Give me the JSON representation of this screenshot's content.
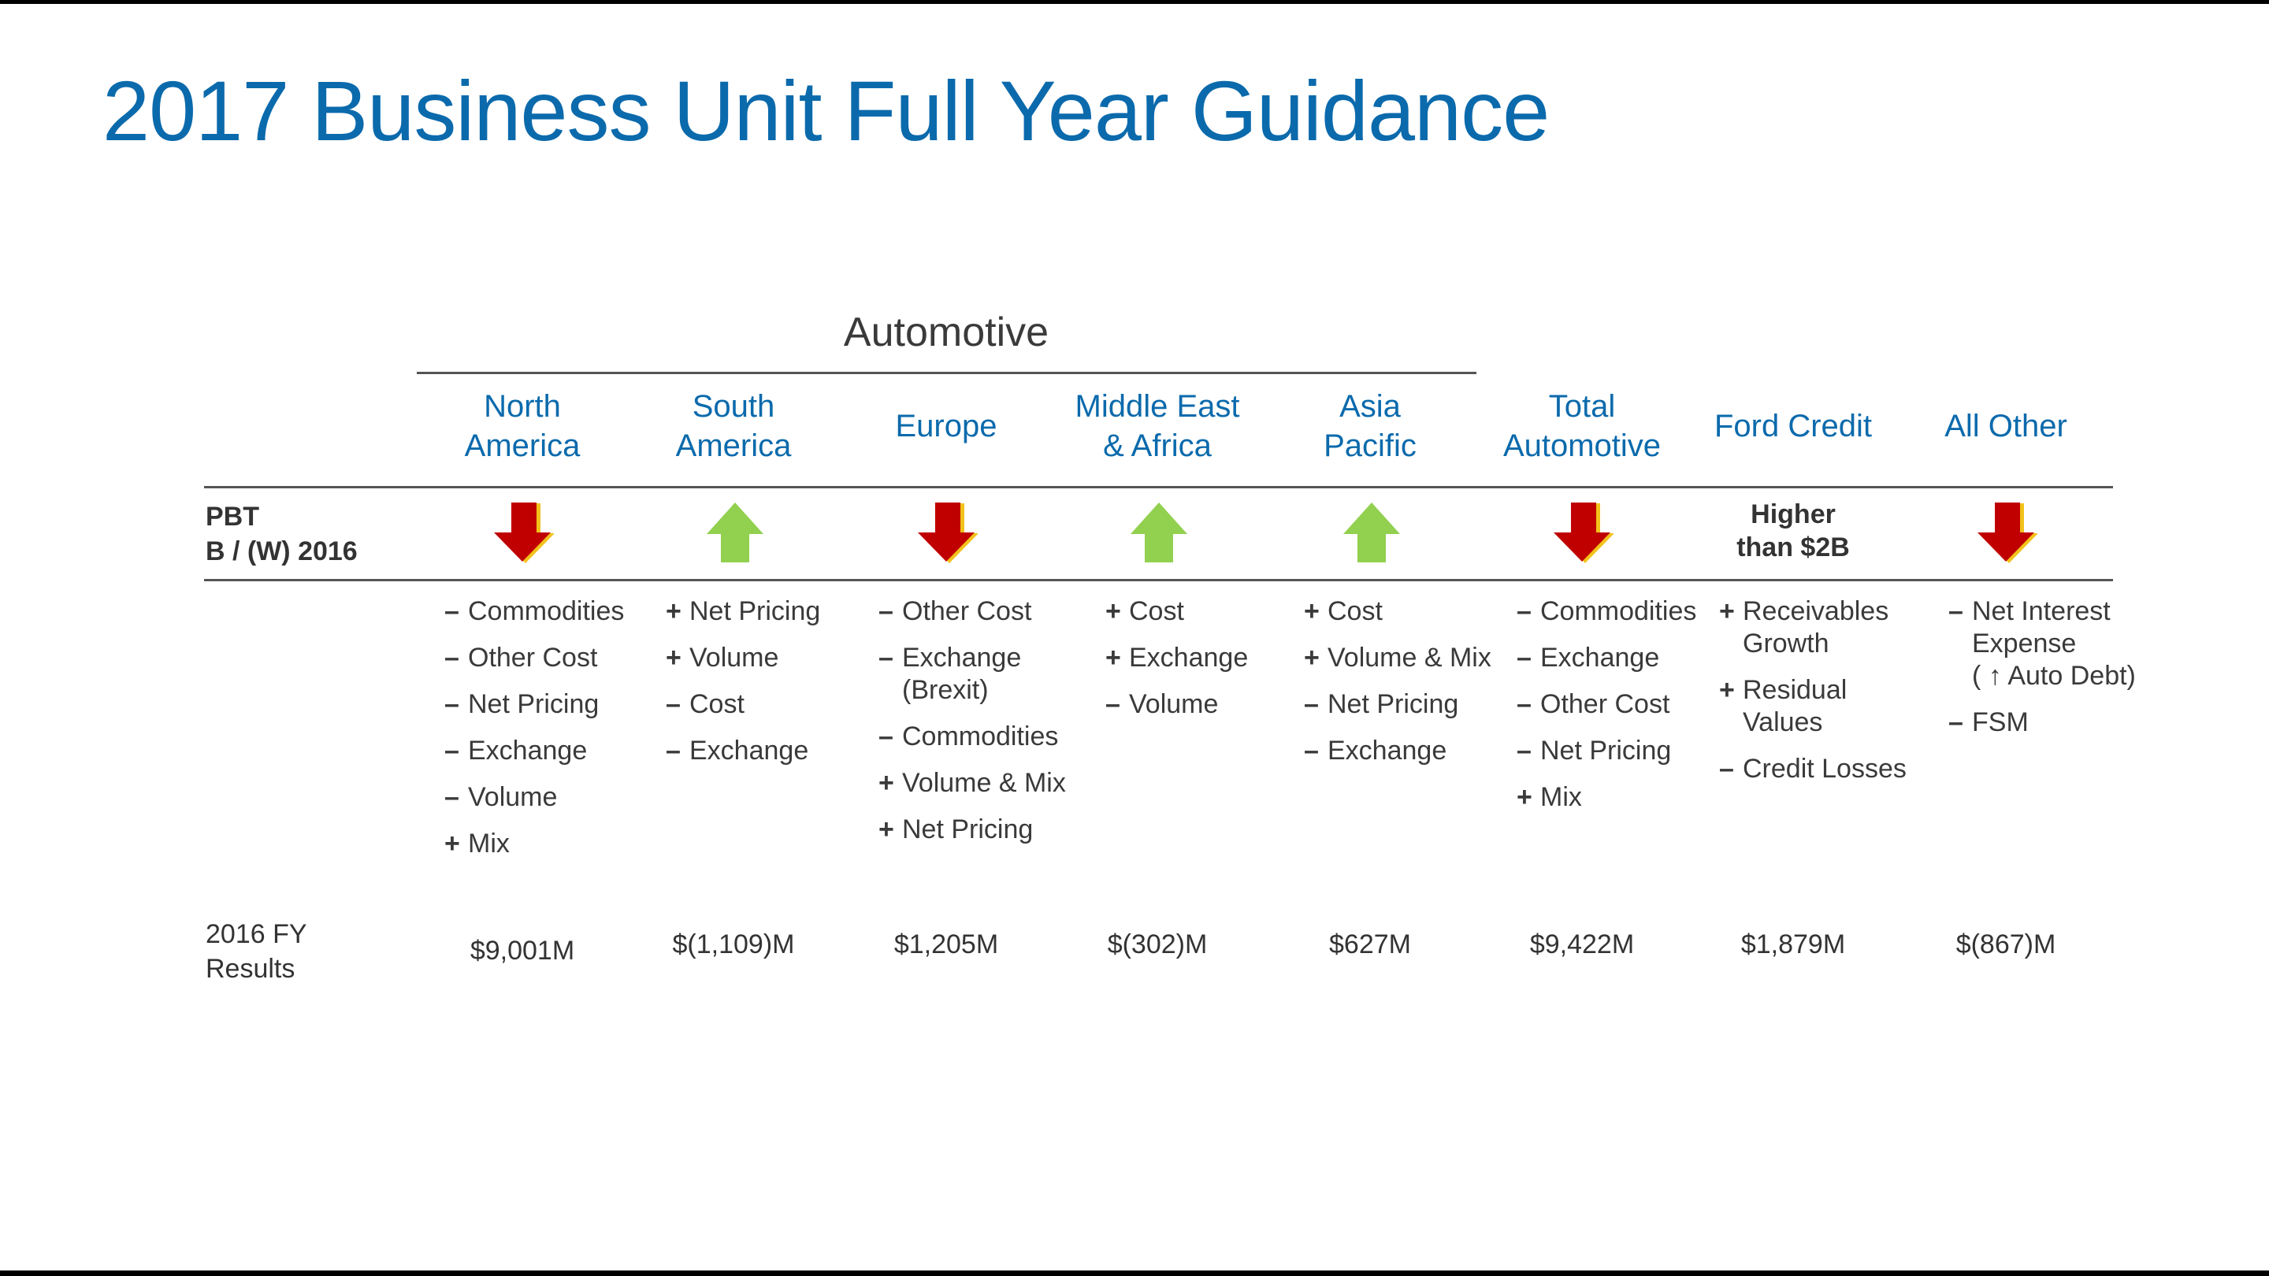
{
  "title": "2017 Business Unit Full Year Guidance",
  "group_label": "Automotive",
  "row_labels": {
    "pbt": [
      "PBT",
      "B / (W) 2016"
    ],
    "results": [
      "2016 FY",
      "Results"
    ]
  },
  "colors": {
    "title": "#0b6aac",
    "down": "#c00000",
    "up": "#92d050"
  },
  "columns": [
    {
      "header": [
        "North",
        "America"
      ],
      "pbt": "down",
      "value": "$9,001M",
      "bullets": [
        {
          "sign": "–",
          "lines": [
            "Commodities"
          ]
        },
        {
          "sign": "–",
          "lines": [
            "Other Cost"
          ]
        },
        {
          "sign": "–",
          "lines": [
            "Net Pricing"
          ]
        },
        {
          "sign": "–",
          "lines": [
            "Exchange"
          ]
        },
        {
          "sign": "–",
          "lines": [
            "Volume"
          ]
        },
        {
          "sign": "+",
          "lines": [
            "Mix"
          ]
        }
      ]
    },
    {
      "header": [
        "South",
        "America"
      ],
      "pbt": "up",
      "value": "$(1,109)M",
      "bullets": [
        {
          "sign": "+",
          "lines": [
            "Net Pricing"
          ]
        },
        {
          "sign": "+",
          "lines": [
            "Volume"
          ]
        },
        {
          "sign": "–",
          "lines": [
            "Cost"
          ]
        },
        {
          "sign": "–",
          "lines": [
            "Exchange"
          ]
        }
      ]
    },
    {
      "header": [
        "Europe"
      ],
      "pbt": "down",
      "value": "$1,205M",
      "bullets": [
        {
          "sign": "–",
          "lines": [
            "Other Cost"
          ]
        },
        {
          "sign": "–",
          "lines": [
            "Exchange",
            "(Brexit)"
          ]
        },
        {
          "sign": "–",
          "lines": [
            "Commodities"
          ]
        },
        {
          "sign": "+",
          "lines": [
            "Volume & Mix"
          ]
        },
        {
          "sign": "+",
          "lines": [
            "Net Pricing"
          ]
        }
      ]
    },
    {
      "header": [
        "Middle East",
        "& Africa"
      ],
      "pbt": "up",
      "value": "$(302)M",
      "bullets": [
        {
          "sign": "+",
          "lines": [
            "Cost"
          ]
        },
        {
          "sign": "+",
          "lines": [
            "Exchange"
          ]
        },
        {
          "sign": "–",
          "lines": [
            "Volume"
          ]
        }
      ]
    },
    {
      "header": [
        "Asia",
        "Pacific"
      ],
      "pbt": "up",
      "value": "$627M",
      "bullets": [
        {
          "sign": "+",
          "lines": [
            "Cost"
          ]
        },
        {
          "sign": "+",
          "lines": [
            "Volume & Mix"
          ]
        },
        {
          "sign": "–",
          "lines": [
            "Net Pricing"
          ]
        },
        {
          "sign": "–",
          "lines": [
            "Exchange"
          ]
        }
      ]
    },
    {
      "header": [
        "Total",
        "Automotive"
      ],
      "pbt": "down",
      "value": "$9,422M",
      "bullets": [
        {
          "sign": "–",
          "lines": [
            "Commodities"
          ]
        },
        {
          "sign": "–",
          "lines": [
            "Exchange"
          ]
        },
        {
          "sign": "–",
          "lines": [
            "Other Cost"
          ]
        },
        {
          "sign": "–",
          "lines": [
            "Net Pricing"
          ]
        },
        {
          "sign": "+",
          "lines": [
            "Mix"
          ]
        }
      ]
    },
    {
      "header": [
        "Ford Credit"
      ],
      "pbt": "text",
      "pbt_text": [
        "Higher",
        "than $2B"
      ],
      "value": "$1,879M",
      "bullets": [
        {
          "sign": "+",
          "lines": [
            "Receivables",
            "Growth"
          ]
        },
        {
          "sign": "+",
          "lines": [
            "Residual",
            "Values"
          ]
        },
        {
          "sign": "–",
          "lines": [
            "Credit Losses"
          ]
        }
      ]
    },
    {
      "header": [
        "All Other"
      ],
      "pbt": "down",
      "value": "$(867)M",
      "bullets": [
        {
          "sign": "–",
          "lines": [
            "Net Interest",
            "Expense",
            "( ↑ Auto Debt)"
          ]
        },
        {
          "sign": "–",
          "lines": [
            "FSM"
          ]
        }
      ]
    }
  ]
}
